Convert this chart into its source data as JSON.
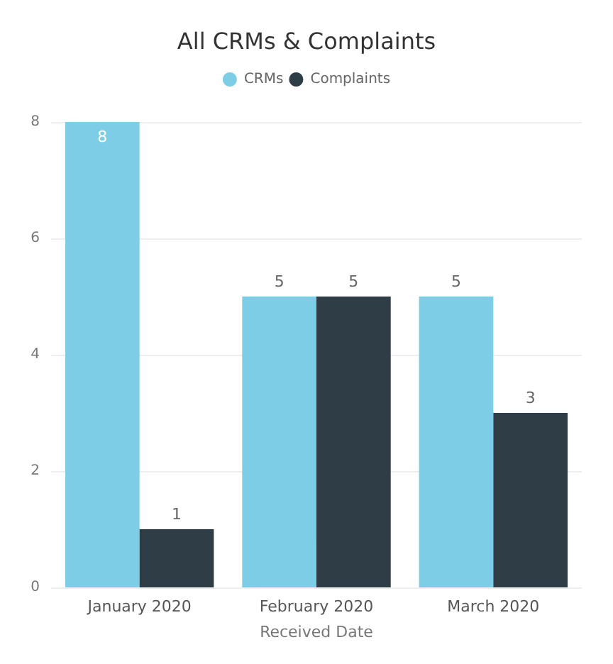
{
  "chart_data": {
    "type": "bar",
    "title": "All CRMs & Complaints",
    "xlabel": "Received Date",
    "categories": [
      "January 2020",
      "February 2020",
      "March 2020"
    ],
    "series": [
      {
        "name": "CRMs",
        "color": "#7dcde6",
        "values": [
          8,
          5,
          5
        ]
      },
      {
        "name": "Complaints",
        "color": "#2f3e46",
        "values": [
          1,
          5,
          3
        ]
      }
    ],
    "ylim": [
      0,
      8
    ],
    "yticks": [
      0,
      2,
      4,
      6,
      8
    ],
    "grid": "y",
    "legend": "top",
    "data_labels": true
  }
}
